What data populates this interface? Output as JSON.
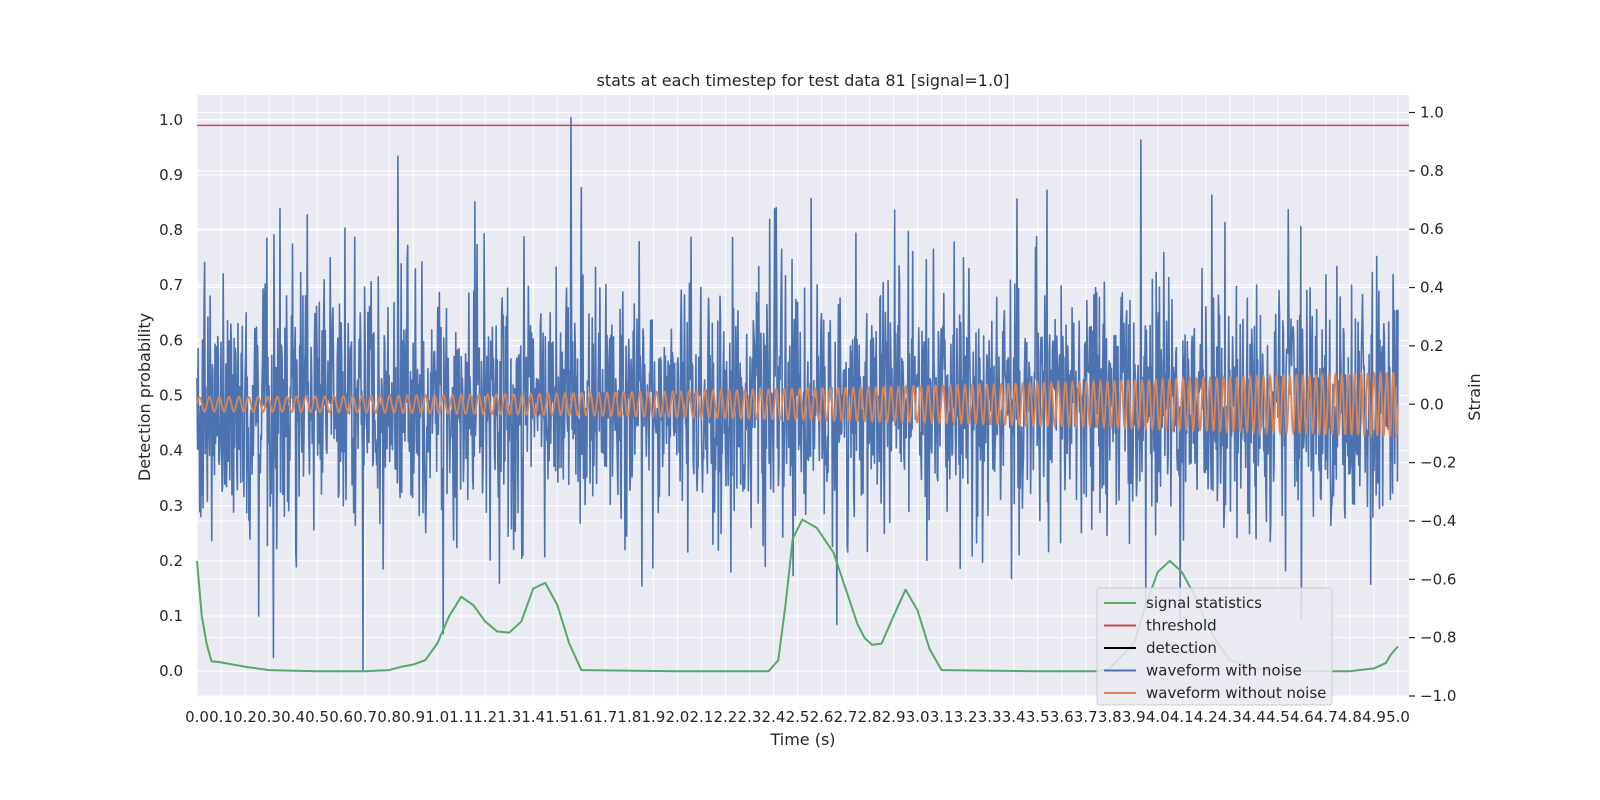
{
  "chart_data": {
    "type": "line",
    "title": "stats at each timestep for test data 81 [signal=1.0]",
    "xlabel": "Time (s)",
    "ylabel_left": "Detection probability",
    "ylabel_right": "Strain",
    "xlim": [
      0.0,
      5.0
    ],
    "ylim_left": [
      -0.045,
      1.045
    ],
    "ylim_right": [
      -1.0,
      1.06
    ],
    "grid": true,
    "x_tick_labels": [
      "0.0",
      "0.1",
      "0.2",
      "0.3",
      "0.4",
      "0.5",
      "0.6",
      "0.7",
      "0.8",
      "0.9",
      "1.0",
      "1.1",
      "1.2",
      "1.3",
      "1.4",
      "1.5",
      "1.6",
      "1.7",
      "1.8",
      "1.9",
      "2.0",
      "2.1",
      "2.2",
      "2.3",
      "2.4",
      "2.5",
      "2.6",
      "2.7",
      "2.8",
      "2.9",
      "3.0",
      "3.1",
      "3.2",
      "3.3",
      "3.4",
      "3.5",
      "3.6",
      "3.7",
      "3.8",
      "3.9",
      "4.0",
      "4.1",
      "4.2",
      "4.3",
      "4.4",
      "4.5",
      "4.6",
      "4.7",
      "4.8",
      "4.9",
      "5.0"
    ],
    "y_left_tick_labels": [
      "0.0",
      "0.1",
      "0.2",
      "0.3",
      "0.4",
      "0.5",
      "0.6",
      "0.7",
      "0.8",
      "0.9",
      "1.0"
    ],
    "y_left_tick_values": [
      0.0,
      0.1,
      0.2,
      0.3,
      0.4,
      0.5,
      0.6,
      0.7,
      0.8,
      0.9,
      1.0
    ],
    "y_right_tick_labels": [
      "−1.0",
      "−0.8",
      "−0.6",
      "−0.4",
      "−0.2",
      "0.0",
      "0.2",
      "0.4",
      "0.6",
      "0.8",
      "1.0"
    ],
    "y_right_tick_values": [
      -1.0,
      -0.8,
      -0.6,
      -0.4,
      -0.2,
      0.0,
      0.2,
      0.4,
      0.6,
      0.8,
      1.0
    ],
    "threshold": 0.99,
    "signal_statistics": {
      "x": [
        0.0,
        0.02,
        0.04,
        0.06,
        0.1,
        0.15,
        0.2,
        0.3,
        0.5,
        0.7,
        0.8,
        0.85,
        0.9,
        0.95,
        1.0,
        1.05,
        1.1,
        1.15,
        1.2,
        1.25,
        1.3,
        1.35,
        1.4,
        1.45,
        1.5,
        1.55,
        1.6,
        2.0,
        2.38,
        2.42,
        2.45,
        2.48,
        2.52,
        2.58,
        2.65,
        2.7,
        2.75,
        2.78,
        2.81,
        2.85,
        2.9,
        2.95,
        3.0,
        3.05,
        3.1,
        3.5,
        3.75,
        3.8,
        3.9,
        3.95,
        4.0,
        4.05,
        4.1,
        4.15,
        4.2,
        4.25,
        4.3,
        4.4,
        4.5,
        4.8,
        4.9,
        4.95,
        4.97,
        5.0
      ],
      "y": [
        0.2,
        0.1,
        0.05,
        0.018,
        0.016,
        0.012,
        0.008,
        0.002,
        0.0,
        0.0,
        0.002,
        0.008,
        0.012,
        0.02,
        0.05,
        0.1,
        0.135,
        0.12,
        0.09,
        0.072,
        0.07,
        0.09,
        0.15,
        0.16,
        0.12,
        0.05,
        0.002,
        0.0,
        0.0,
        0.02,
        0.12,
        0.24,
        0.275,
        0.26,
        0.215,
        0.15,
        0.085,
        0.06,
        0.048,
        0.05,
        0.1,
        0.148,
        0.11,
        0.04,
        0.002,
        0.0,
        0.0,
        0.005,
        0.05,
        0.12,
        0.18,
        0.2,
        0.18,
        0.14,
        0.09,
        0.05,
        0.02,
        0.005,
        0.0,
        0.0,
        0.005,
        0.015,
        0.03,
        0.045
      ]
    },
    "waveform_without_noise": {
      "start_amplitude": 0.025,
      "end_amplitude": 0.11,
      "cycles": 155
    },
    "waveform_with_noise": {
      "center": 0.0,
      "typical_range": [
        -0.55,
        0.55
      ],
      "extreme_range": [
        -0.91,
        0.99
      ]
    },
    "legend": {
      "position": "lower right",
      "entries": [
        {
          "label": "signal statistics",
          "color": "#55a868"
        },
        {
          "label": "threshold",
          "color": "#c44e52"
        },
        {
          "label": "detection",
          "color": "#000000"
        },
        {
          "label": "waveform with noise",
          "color": "#4c72b0"
        },
        {
          "label": "waveform without noise",
          "color": "#dd8452"
        }
      ]
    },
    "colors": {
      "axes_background": "#eaeaf2",
      "grid": "#ffffff",
      "signal_statistics": "#55a868",
      "threshold": "#c44e52",
      "waveform_with_noise": "#4c72b0",
      "waveform_without_noise": "#dd8452"
    }
  }
}
